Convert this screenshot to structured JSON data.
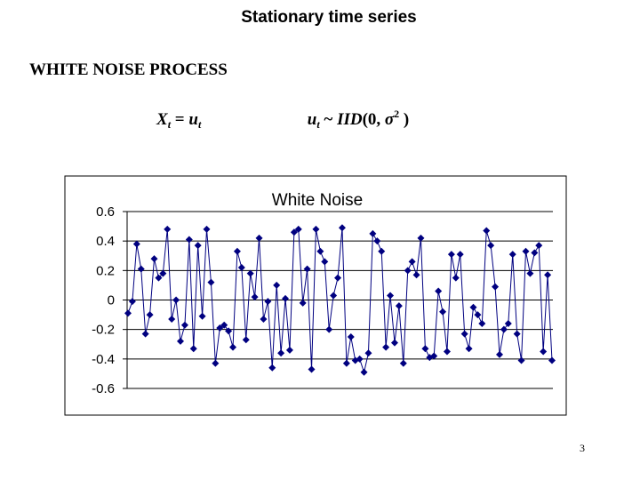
{
  "title": "Stationary time series",
  "heading": "WHITE NOISE PROCESS",
  "formula_left": [
    "X",
    "t",
    " = ",
    "u",
    "t"
  ],
  "formula_right": [
    "u",
    "t",
    " ~ ",
    "IID",
    "(0, ",
    "σ",
    "2",
    " )"
  ],
  "page_number": "3",
  "chart_data": {
    "type": "line",
    "title": "White Noise",
    "color": "#000080",
    "marker": "diamond",
    "grid": true,
    "ylim": [
      -0.6,
      0.6
    ],
    "yticks": [
      0.6,
      0.4,
      0.2,
      0,
      -0.2,
      -0.4,
      -0.6
    ],
    "values": [
      -0.09,
      -0.01,
      0.38,
      0.21,
      -0.23,
      -0.1,
      0.28,
      0.15,
      0.18,
      0.48,
      -0.13,
      0.0,
      -0.28,
      -0.17,
      0.41,
      -0.33,
      0.37,
      -0.11,
      0.48,
      0.12,
      -0.43,
      -0.19,
      -0.17,
      -0.21,
      -0.32,
      0.33,
      0.22,
      -0.27,
      0.18,
      0.02,
      0.42,
      -0.13,
      -0.01,
      -0.46,
      0.1,
      -0.36,
      0.01,
      -0.34,
      0.46,
      0.48,
      -0.02,
      0.21,
      -0.47,
      0.48,
      0.33,
      0.26,
      -0.2,
      0.03,
      0.15,
      0.49,
      -0.43,
      -0.25,
      -0.41,
      -0.4,
      -0.49,
      -0.36,
      0.45,
      0.4,
      0.33,
      -0.32,
      0.03,
      -0.29,
      -0.04,
      -0.43,
      0.2,
      0.26,
      0.17,
      0.42,
      -0.33,
      -0.39,
      -0.38,
      0.06,
      -0.08,
      -0.35,
      0.31,
      0.15,
      0.31,
      -0.23,
      -0.33,
      -0.05,
      -0.1,
      -0.16,
      0.47,
      0.37,
      0.09,
      -0.37,
      -0.2,
      -0.16,
      0.31,
      -0.23,
      -0.41,
      0.33,
      0.18,
      0.32,
      0.37,
      -0.35,
      0.17,
      -0.41
    ]
  }
}
